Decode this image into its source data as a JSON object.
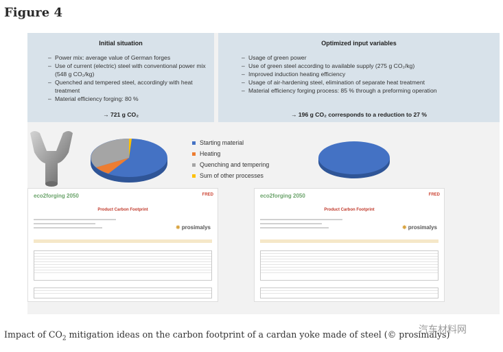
{
  "figure_label": "Figure 4",
  "left_panel": {
    "heading": "Initial situation",
    "items": [
      "Power mix: average value of German forges",
      "Use of current (electric) steel with conventional power mix (548 g CO₂/kg)",
      "Quenched and tempered steel, accordingly with heat treatment",
      "Material efficiency forging: 80 %"
    ],
    "result": "→ 721 g CO₂"
  },
  "right_panel": {
    "heading": "Optimized input variables",
    "items": [
      "Usage of green power",
      "Use of green steel according to available supply (275 g CO₂/kg)",
      "Improved induction heating efficiency",
      "Usage of air-hardening steel, elimination of separate heat treatment",
      "Material efficiency forging process: 85 % through a preforming operation"
    ],
    "result": "→ 196 g CO₂ corresponds to a reduction to 27 %"
  },
  "legend": [
    {
      "label": "Starting material",
      "color": "#4472c4"
    },
    {
      "label": "Heating",
      "color": "#ed7d31"
    },
    {
      "label": "Quenching and tempering",
      "color": "#a5a5a5"
    },
    {
      "label": "Sum of other processes",
      "color": "#ffc000"
    }
  ],
  "reports": {
    "logo": "eco2forging 2050",
    "fred": "FRED",
    "title": "Product Carbon Footprint",
    "brand": "prosimalys"
  },
  "caption_pre": "Impact of CO",
  "caption_sub": "2",
  "caption_post": " mitigation ideas on the carbon footprint of a cardan yoke made of steel (© prosimalys)",
  "watermark": "汽车材料网"
}
